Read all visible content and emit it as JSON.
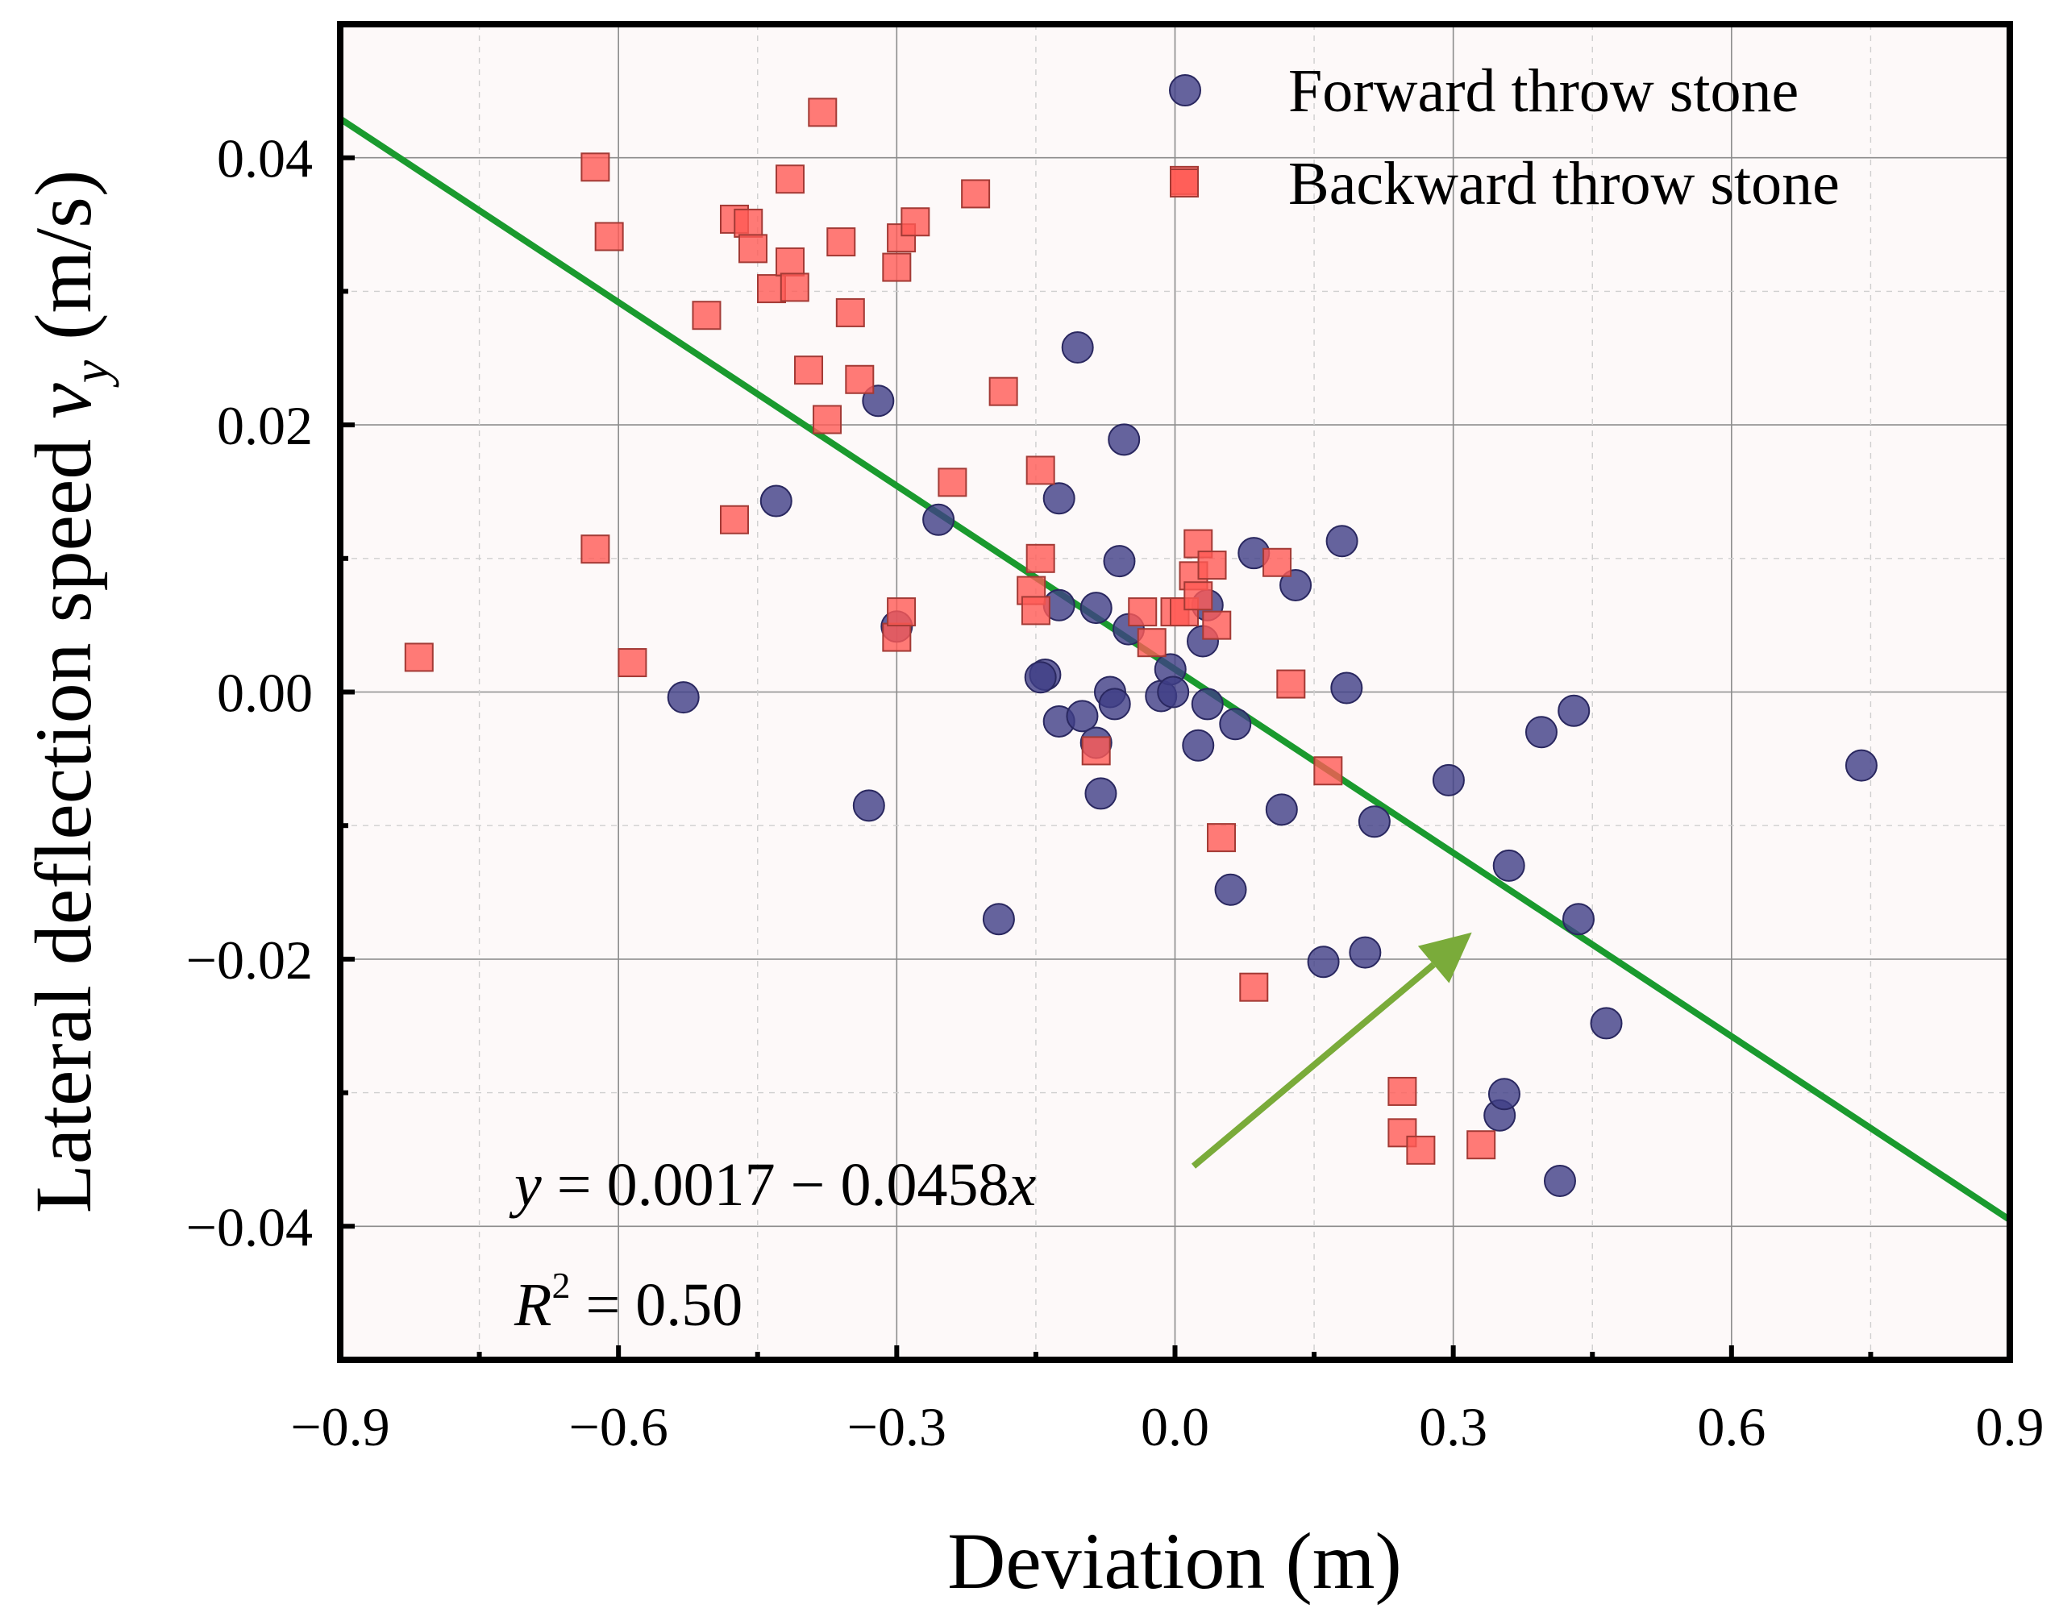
{
  "chart_data": {
    "type": "scatter",
    "xlabel": "Deviation (m)",
    "ylabel_prefix": "Lateral deflection speed ",
    "ylabel_var": "v",
    "ylabel_sub": "y",
    "ylabel_suffix": " (m/s)",
    "xlim": [
      -0.9,
      0.9
    ],
    "ylim": [
      -0.05,
      0.05
    ],
    "x_ticks": [
      -0.9,
      -0.6,
      -0.3,
      0.0,
      0.3,
      0.6,
      0.9
    ],
    "x_tick_labels": [
      "−0.9",
      "−0.6",
      "−0.3",
      "0.0",
      "0.3",
      "0.6",
      "0.9"
    ],
    "y_ticks": [
      -0.04,
      -0.02,
      0.0,
      0.02,
      0.04
    ],
    "y_tick_labels": [
      "−0.04",
      "−0.02",
      "0.00",
      "0.02",
      "0.04"
    ],
    "grid": true,
    "legend_position": "top-right",
    "series": [
      {
        "name": "Forward throw stone",
        "marker": "circle",
        "color": "#3f3d86",
        "points": [
          [
            -0.53,
            -0.0004
          ],
          [
            -0.43,
            0.0143
          ],
          [
            -0.33,
            -0.0085
          ],
          [
            -0.32,
            0.0218
          ],
          [
            -0.3,
            0.0049
          ],
          [
            -0.255,
            0.0129
          ],
          [
            -0.19,
            -0.017
          ],
          [
            -0.14,
            0.0013
          ],
          [
            -0.145,
            0.0011
          ],
          [
            -0.125,
            0.0145
          ],
          [
            -0.125,
            0.0065
          ],
          [
            -0.125,
            -0.0022
          ],
          [
            -0.105,
            0.0258
          ],
          [
            -0.1,
            -0.0018
          ],
          [
            -0.085,
            -0.0038
          ],
          [
            -0.085,
            0.0063
          ],
          [
            -0.08,
            -0.0076
          ],
          [
            -0.07,
            0.0
          ],
          [
            -0.065,
            -0.0009
          ],
          [
            -0.06,
            0.0098
          ],
          [
            -0.055,
            0.0189
          ],
          [
            -0.05,
            0.0047
          ],
          [
            -0.015,
            -0.0003
          ],
          [
            -0.005,
            0.0017
          ],
          [
            -0.002,
            0.0
          ],
          [
            0.025,
            -0.004
          ],
          [
            0.03,
            0.0038
          ],
          [
            0.035,
            0.0065
          ],
          [
            0.035,
            -0.0009
          ],
          [
            0.06,
            -0.0148
          ],
          [
            0.065,
            -0.0024
          ],
          [
            0.085,
            0.0104
          ],
          [
            0.115,
            -0.0088
          ],
          [
            0.13,
            0.008
          ],
          [
            0.16,
            -0.0202
          ],
          [
            0.18,
            0.0113
          ],
          [
            0.185,
            0.0003
          ],
          [
            0.205,
            -0.0195
          ],
          [
            0.215,
            -0.0097
          ],
          [
            0.295,
            -0.0066
          ],
          [
            0.35,
            -0.0317
          ],
          [
            0.355,
            -0.0301
          ],
          [
            0.36,
            -0.013
          ],
          [
            0.395,
            -0.003
          ],
          [
            0.415,
            -0.0366
          ],
          [
            0.43,
            -0.0014
          ],
          [
            0.435,
            -0.017
          ],
          [
            0.465,
            -0.0248
          ],
          [
            0.74,
            -0.0055
          ]
        ]
      },
      {
        "name": "Backward throw stone",
        "marker": "square",
        "color": "#ff5a55",
        "points": [
          [
            -0.815,
            0.0026
          ],
          [
            -0.625,
            0.0393
          ],
          [
            -0.625,
            0.0107
          ],
          [
            -0.61,
            0.0341
          ],
          [
            -0.585,
            0.0022
          ],
          [
            -0.505,
            0.0282
          ],
          [
            -0.475,
            0.0129
          ],
          [
            -0.475,
            0.0354
          ],
          [
            -0.46,
            0.0351
          ],
          [
            -0.455,
            0.0332
          ],
          [
            -0.435,
            0.0302
          ],
          [
            -0.415,
            0.0384
          ],
          [
            -0.415,
            0.0322
          ],
          [
            -0.41,
            0.0303
          ],
          [
            -0.395,
            0.0241
          ],
          [
            -0.38,
            0.0434
          ],
          [
            -0.375,
            0.0204
          ],
          [
            -0.36,
            0.0337
          ],
          [
            -0.35,
            0.0284
          ],
          [
            -0.34,
            0.0234
          ],
          [
            -0.3,
            0.0318
          ],
          [
            -0.3,
            0.0041
          ],
          [
            -0.295,
            0.034
          ],
          [
            -0.295,
            0.006
          ],
          [
            -0.28,
            0.0352
          ],
          [
            -0.24,
            0.0157
          ],
          [
            -0.215,
            0.0373
          ],
          [
            -0.185,
            0.0225
          ],
          [
            -0.155,
            0.0076
          ],
          [
            -0.15,
            0.0061
          ],
          [
            -0.145,
            0.0166
          ],
          [
            -0.145,
            0.01
          ],
          [
            -0.085,
            -0.0044
          ],
          [
            -0.035,
            0.006
          ],
          [
            -0.025,
            0.0037
          ],
          [
            0.0,
            0.006
          ],
          [
            0.01,
            0.006
          ],
          [
            0.01,
            0.0383
          ],
          [
            0.02,
            0.0087
          ],
          [
            0.025,
            0.0111
          ],
          [
            0.025,
            0.0072
          ],
          [
            0.04,
            0.0095
          ],
          [
            0.045,
            0.005
          ],
          [
            0.05,
            -0.0109
          ],
          [
            0.085,
            -0.0221
          ],
          [
            0.11,
            0.0097
          ],
          [
            0.125,
            0.0006
          ],
          [
            0.165,
            -0.0059
          ],
          [
            0.245,
            -0.0299
          ],
          [
            0.245,
            -0.033
          ],
          [
            0.265,
            -0.0343
          ],
          [
            0.33,
            -0.0339
          ]
        ]
      }
    ],
    "fit_line": {
      "intercept": 0.0017,
      "slope": -0.0458,
      "x_range": [
        -0.9,
        0.9
      ],
      "color": "#1a9a2e"
    },
    "equation_label": {
      "y": "y",
      "eq": " = 0.0017 − 0.0458",
      "x": "x"
    },
    "r2_label": {
      "r": "R",
      "sup": "2",
      "eq": " = 0.50"
    },
    "arrow": {
      "from": [
        0.02,
        -0.0355
      ],
      "to": [
        0.32,
        -0.018
      ],
      "color": "#7aab3a"
    }
  }
}
